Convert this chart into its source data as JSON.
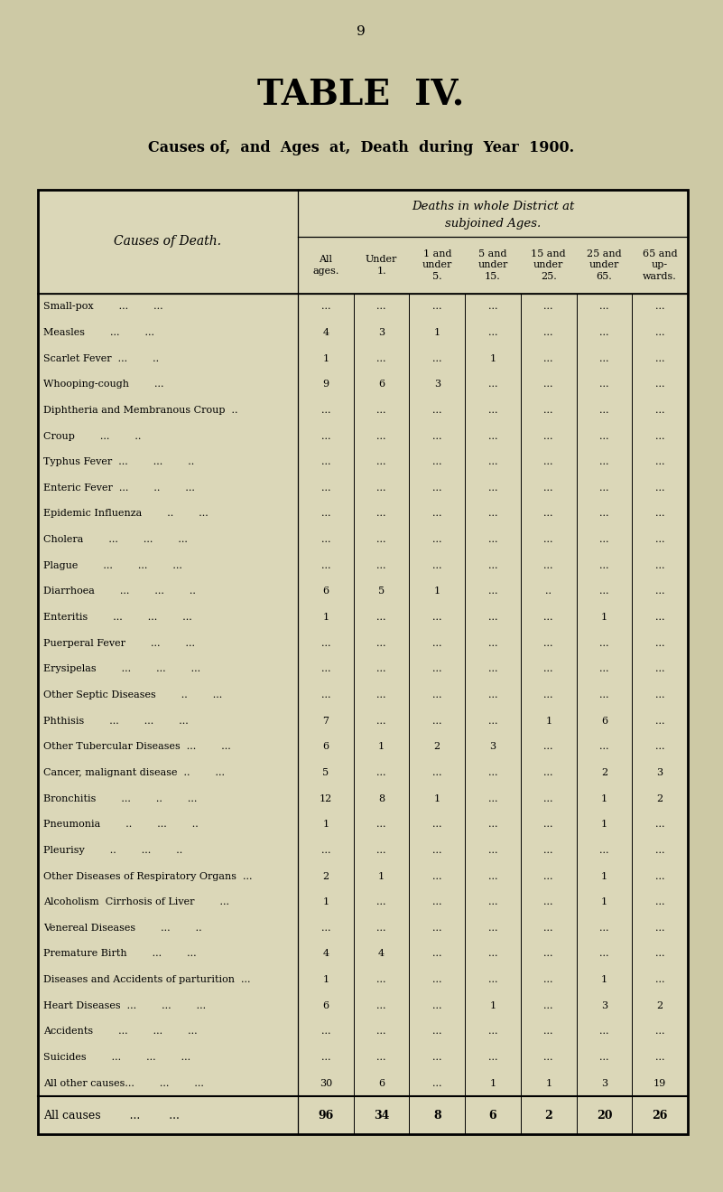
{
  "page_number": "9",
  "title": "TABLE  IV.",
  "subtitle": "Causes of,  and  Ages  at,  Death  during  Year  1900.",
  "bg_color": "#cdc9a5",
  "table_bg": "#dbd7b8",
  "header1": "Deaths in whole District at",
  "header2": "subjoined Ages.",
  "col_header_left": "Causes of Death.",
  "col_headers": [
    "All\nages.",
    "Under\n1.",
    "1 and\nunder\n5.",
    "5 and\nunder\n15.",
    "15 and\nunder\n25.",
    "25 and\nunder\n65.",
    "65 and\nup-\nwards."
  ],
  "rows": [
    [
      "Small-pox        ...        ...",
      "...",
      "...",
      "...",
      "...",
      "...",
      "...",
      "..."
    ],
    [
      "Measles        ...        ...",
      "4",
      "3",
      "1",
      "...",
      "...",
      "...",
      "..."
    ],
    [
      "Scarlet Fever  ...        ..",
      "1",
      "...",
      "...",
      "1",
      "...",
      "...",
      "..."
    ],
    [
      "Whooping-cough        ...",
      "9",
      "6",
      "3",
      "...",
      "...",
      "...",
      "..."
    ],
    [
      "Diphtheria and Membranous Croup  ..",
      "...",
      "...",
      "...",
      "...",
      "...",
      "...",
      "..."
    ],
    [
      "Croup        ...        ..",
      "...",
      "...",
      "...",
      "...",
      "...",
      "...",
      "..."
    ],
    [
      "Typhus Fever  ...        ...        ..",
      "...",
      "...",
      "...",
      "...",
      "...",
      "...",
      "..."
    ],
    [
      "Enteric Fever  ...        ..        ...",
      "...",
      "...",
      "...",
      "...",
      "...",
      "...",
      "..."
    ],
    [
      "Epidemic Influenza        ..        ...",
      "...",
      "...",
      "...",
      "...",
      "...",
      "...",
      "..."
    ],
    [
      "Cholera        ...        ...        ...",
      "...",
      "...",
      "...",
      "...",
      "...",
      "...",
      "..."
    ],
    [
      "Plague        ...        ...        ...",
      "...",
      "...",
      "...",
      "...",
      "...",
      "...",
      "..."
    ],
    [
      "Diarrhoea        ...        ...        ..",
      "6",
      "5",
      "1",
      "...",
      "..",
      "...",
      "..."
    ],
    [
      "Enteritis        ...        ...        ...",
      "1",
      "...",
      "...",
      "...",
      "...",
      "1",
      "..."
    ],
    [
      "Puerperal Fever        ...        ...",
      "...",
      "...",
      "...",
      "...",
      "...",
      "...",
      "..."
    ],
    [
      "Erysipelas        ...        ...        ...",
      "...",
      "...",
      "...",
      "...",
      "...",
      "...",
      "..."
    ],
    [
      "Other Septic Diseases        ..        ...",
      "...",
      "...",
      "...",
      "...",
      "...",
      "...",
      "..."
    ],
    [
      "Phthisis        ...        ...        ...",
      "7",
      "...",
      "...",
      "...",
      "1",
      "6",
      "..."
    ],
    [
      "Other Tubercular Diseases  ...        ...",
      "6",
      "1",
      "2",
      "3",
      "...",
      "...",
      "..."
    ],
    [
      "Cancer, malignant disease  ..        ...",
      "5",
      "...",
      "...",
      "...",
      "...",
      "2",
      "3"
    ],
    [
      "Bronchitis        ...        ..        ...",
      "12",
      "8",
      "1",
      "...",
      "...",
      "1",
      "2"
    ],
    [
      "Pneumonia        ..        ...        ..",
      "1",
      "...",
      "...",
      "...",
      "...",
      "1",
      "..."
    ],
    [
      "Pleurisy        ..        ...        ..",
      "...",
      "...",
      "...",
      "...",
      "...",
      "...",
      "..."
    ],
    [
      "Other Diseases of Respiratory Organs  ...",
      "2",
      "1",
      "...",
      "...",
      "...",
      "1",
      "..."
    ],
    [
      "Alcoholism  Cirrhosis of Liver        ...",
      "1",
      "...",
      "...",
      "...",
      "...",
      "1",
      "..."
    ],
    [
      "Venereal Diseases        ...        ..",
      "...",
      "...",
      "...",
      "...",
      "...",
      "...",
      "..."
    ],
    [
      "Premature Birth        ...        ...",
      "4",
      "4",
      "...",
      "...",
      "...",
      "...",
      "..."
    ],
    [
      "Diseases and Accidents of parturition  ...",
      "1",
      "...",
      "...",
      "...",
      "...",
      "1",
      "..."
    ],
    [
      "Heart Diseases  ...        ...        ...",
      "6",
      "...",
      "...",
      "1",
      "...",
      "3",
      "2"
    ],
    [
      "Accidents        ...        ...        ...",
      "...",
      "...",
      "...",
      "...",
      "...",
      "...",
      "..."
    ],
    [
      "Suicides        ...        ...        ...",
      "...",
      "...",
      "...",
      "...",
      "...",
      "...",
      "..."
    ],
    [
      "All other causes...        ...        ...",
      "30",
      "6",
      "...",
      "1",
      "1",
      "3",
      "19"
    ]
  ],
  "totals_row": [
    "All causes        ...        ...",
    "96",
    "34",
    "8",
    "6",
    "2",
    "20",
    "26"
  ]
}
